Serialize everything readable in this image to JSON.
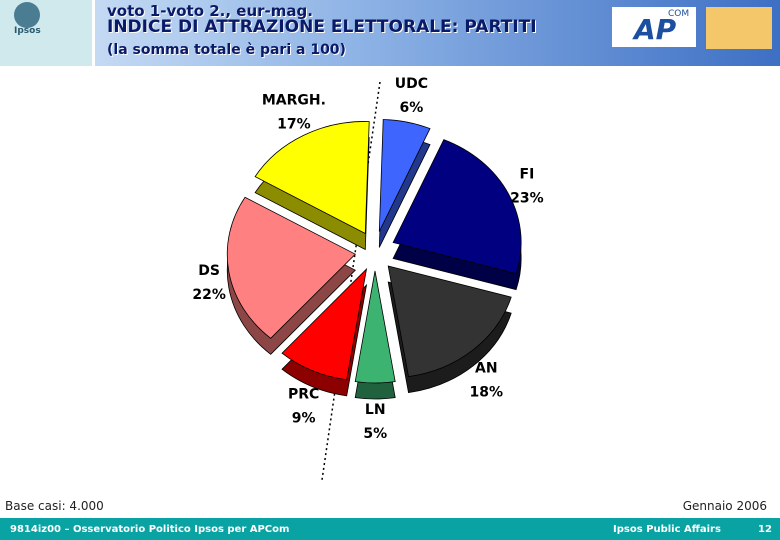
{
  "header": {
    "logo": "Ipsos",
    "line1": "voto 1-voto 2., eur-mag.",
    "partner_logo": "AP",
    "partner_logo_sup": "COM"
  },
  "chart_data": {
    "type": "pie",
    "title": "INDICE DI ATTRAZIONE ELETTORALE: PARTITI",
    "subtitle": "(la somma totale è pari a 100)",
    "categories": [
      "UDC",
      "FI",
      "AN",
      "LN",
      "PRC",
      "DS",
      "MARGH."
    ],
    "values": [
      6,
      23,
      18,
      5,
      9,
      22,
      17
    ],
    "value_labels": [
      "6%",
      "23%",
      "18%",
      "5%",
      "9%",
      "22%",
      "17%"
    ],
    "colors": [
      "#3e66ff",
      "#000080",
      "#333333",
      "#3cb371",
      "#ff0000",
      "#ff8080",
      "#ffff00"
    ]
  },
  "notes": {
    "base": "Base casi: 4.000",
    "date": "Gennaio 2006"
  },
  "footer": {
    "left": "9814iz00 – Osservatorio Politico Ipsos per APCom",
    "right": "Ipsos Public Affairs",
    "page": "12"
  }
}
